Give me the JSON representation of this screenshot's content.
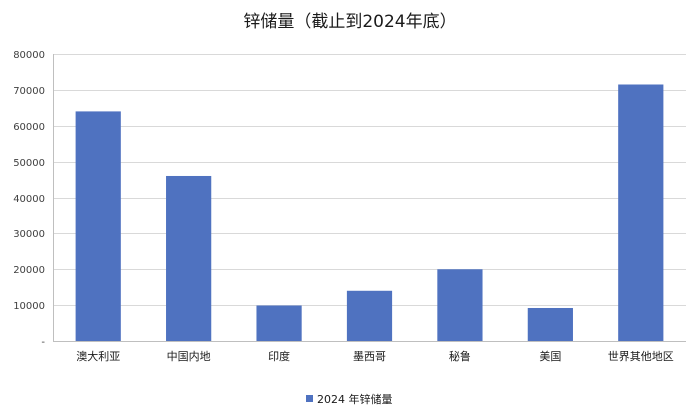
{
  "chart_data": {
    "type": "bar",
    "title": "锌储量（截止到2024年底）",
    "xlabel": "",
    "ylabel": "",
    "categories": [
      "澳大利亚",
      "中国内地",
      "印度",
      "墨西哥",
      "秘鲁",
      "美国",
      "世界其他地区"
    ],
    "series": [
      {
        "name": "2024 年锌储量",
        "values": [
          64000,
          46000,
          9900,
          14000,
          20000,
          9200,
          71500
        ],
        "color": "#4f72c0"
      }
    ],
    "ylim": [
      0,
      80000
    ],
    "yticks": [
      0,
      10000,
      20000,
      30000,
      40000,
      50000,
      60000,
      70000,
      80000
    ],
    "ytick_labels": [
      "-",
      "10000",
      "20000",
      "30000",
      "40000",
      "50000",
      "60000",
      "70000",
      "80000"
    ],
    "grid": true,
    "legend_position": "bottom"
  }
}
